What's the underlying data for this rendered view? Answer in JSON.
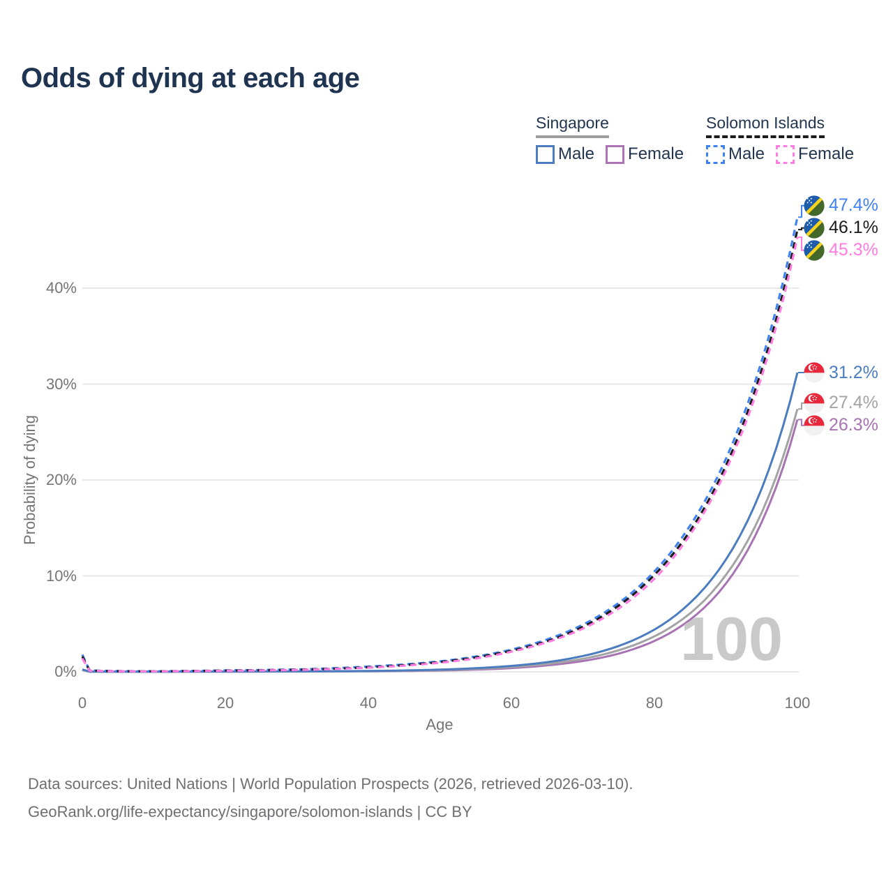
{
  "title": "Odds of dying at each age",
  "legend": {
    "groups": [
      {
        "id": "singapore",
        "country": "Singapore",
        "underline_style": "solid",
        "underline_color": "#9e9e9e",
        "items": [
          {
            "id": "male",
            "label": "Male",
            "color": "#4a7cbf",
            "dash": false
          },
          {
            "id": "female",
            "label": "Female",
            "color": "#ad74b5",
            "dash": false
          }
        ]
      },
      {
        "id": "solomon-islands",
        "country": "Solomon Islands",
        "underline_style": "dashed",
        "underline_color": "#1c1c1c",
        "items": [
          {
            "id": "male",
            "label": "Male",
            "color": "#4083f0",
            "dash": true
          },
          {
            "id": "female",
            "label": "Female",
            "color": "#ff7ce0",
            "dash": true
          }
        ]
      }
    ]
  },
  "watermark": "100",
  "footer": {
    "line1": "Data sources: United Nations | World Population Prospects (2026, retrieved 2026-03-10).",
    "line2": "GeoRank.org/life-expectancy/singapore/solomon-islands | CC BY"
  },
  "chart_data": {
    "type": "line",
    "title": "Odds of dying at each age",
    "xlabel": "Age",
    "ylabel": "Probability of dying",
    "xlim": [
      0,
      100
    ],
    "ylim_pct": [
      0,
      42
    ],
    "x_ticks": [
      0,
      20,
      40,
      60,
      80,
      100
    ],
    "y_ticks_pct": [
      0,
      10,
      20,
      30,
      40
    ],
    "y_tick_labels": [
      "0%",
      "10%",
      "20%",
      "30%",
      "40%"
    ],
    "grid": "horizontal",
    "legend_position": "top-right",
    "ages": [
      0,
      1,
      5,
      10,
      20,
      30,
      40,
      50,
      55,
      60,
      65,
      70,
      75,
      80,
      85,
      90,
      95,
      100
    ],
    "series": [
      {
        "id": "sg-female",
        "name": "Singapore Female",
        "country": "Singapore",
        "sex": "Female",
        "color": "#a873b3",
        "dash": false,
        "flag": "singapore",
        "end_label": "26.3%",
        "values_pct": [
          0.2,
          0.02,
          0.01,
          0.01,
          0.02,
          0.03,
          0.055,
          0.14,
          0.23,
          0.39,
          0.67,
          1.13,
          1.9,
          3.22,
          5.44,
          9.2,
          15.6,
          26.3
        ]
      },
      {
        "id": "sg-total",
        "name": "Singapore Both sexes",
        "country": "Singapore",
        "sex": "Both sexes",
        "color": "#a3a3a3",
        "dash": false,
        "flag": "singapore",
        "end_label": "27.4%",
        "values_pct": [
          0.22,
          0.025,
          0.01,
          0.01,
          0.03,
          0.04,
          0.07,
          0.19,
          0.3,
          0.5,
          0.83,
          1.36,
          2.25,
          3.7,
          6.1,
          10.1,
          16.6,
          27.4
        ]
      },
      {
        "id": "sg-male",
        "name": "Singapore Male",
        "country": "Singapore",
        "sex": "Male",
        "color": "#4a7cbf",
        "dash": false,
        "flag": "singapore",
        "end_label": "31.2%",
        "values_pct": [
          0.25,
          0.03,
          0.01,
          0.01,
          0.04,
          0.05,
          0.09,
          0.23,
          0.38,
          0.62,
          1.01,
          1.65,
          2.7,
          4.4,
          7.2,
          11.7,
          19.1,
          31.2
        ]
      },
      {
        "id": "si-male",
        "name": "Solomon Islands Male",
        "country": "Solomon Islands",
        "sex": "Male",
        "color": "#4083f0",
        "dash": true,
        "flag": "solomon-islands",
        "end_label": "47.4%",
        "values_pct": [
          1.8,
          0.15,
          0.08,
          0.06,
          0.15,
          0.25,
          0.55,
          1.09,
          1.59,
          2.32,
          3.38,
          4.92,
          7.18,
          10.46,
          15.25,
          22.2,
          32.4,
          47.4
        ]
      },
      {
        "id": "si-total",
        "name": "Solomon Islands Both sexes",
        "country": "Solomon Islands",
        "sex": "Both sexes",
        "color": "#1c1c1c",
        "dash": true,
        "flag": "solomon-islands",
        "end_label": "46.1%",
        "values_pct": [
          1.6,
          0.13,
          0.07,
          0.055,
          0.13,
          0.22,
          0.48,
          1.02,
          1.5,
          2.2,
          3.2,
          4.7,
          6.9,
          10.1,
          14.7,
          21.5,
          31.5,
          46.1
        ]
      },
      {
        "id": "si-female",
        "name": "Solomon Islands Female",
        "country": "Solomon Islands",
        "sex": "Female",
        "color": "#ff7ce0",
        "dash": true,
        "flag": "solomon-islands",
        "end_label": "45.3%",
        "values_pct": [
          1.4,
          0.12,
          0.06,
          0.05,
          0.11,
          0.2,
          0.44,
          0.95,
          1.4,
          2.1,
          3.1,
          4.5,
          6.6,
          9.7,
          14.3,
          21.0,
          30.8,
          45.3
        ]
      }
    ]
  }
}
